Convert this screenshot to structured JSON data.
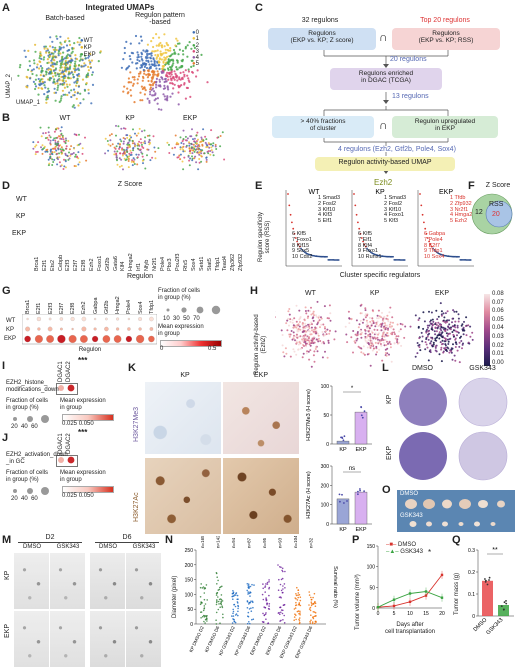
{
  "panels": {
    "A": {
      "label": "A",
      "title": "Integrated UMAPs",
      "left_title": "Batch-based",
      "right_title": "Regulon pattern\n-based",
      "legend": [
        "WT",
        "KP",
        "EKP"
      ],
      "legend_colors": [
        "#3f6fb6",
        "#e3b52a",
        "#48a84c"
      ],
      "cluster_ids": [
        "0",
        "1",
        "2",
        "3",
        "4",
        "5"
      ],
      "cluster_colors": [
        "#3f6fb6",
        "#f0c541",
        "#48a84c",
        "#d94b7a",
        "#8e5aa9",
        "#e57b2e"
      ],
      "axis_y": "UMAP_2",
      "axis_x": "UMAP_1"
    },
    "B": {
      "label": "B",
      "groups": [
        "WT",
        "KP",
        "EKP"
      ]
    },
    "C": {
      "label": "C",
      "left_count": "32 regulons",
      "right_count": "Top 20 regulons",
      "left_box": "Regulons\n(EKP vs. KP; Z score)",
      "right_box": "Regulons\n(EKP vs. KP; RSS)",
      "cap": "∩",
      "count_20": "20 regulons",
      "enriched_box": "Regulons enriched\nin DGAC (TCGA)",
      "count_13": "13 regulons",
      "fraction_box": "> 40% fractions\nof cluster",
      "upregulated_box": "Regulon upregulated\nin EKP",
      "count_4": "4 regulons (Ezh2, Gtf2b, Pole4, Sox4)",
      "umap_box": "Regulon activity-based UMAP",
      "result": "Ezh2"
    },
    "D": {
      "label": "D",
      "title": "Z Score",
      "rows": [
        "WT",
        "KP",
        "EKP"
      ],
      "genes": [
        "Brca1",
        "E2f1",
        "Ets2",
        "Cebpb",
        "E2f3",
        "E2f7",
        "E2f8",
        "Ezh2",
        "Foxo1",
        "Gtf2b",
        "Gata6",
        "Klf4",
        "Hmga2",
        "Irf1",
        "Nfyb",
        "Nr2f1",
        "Pole4",
        "Pbx3",
        "Pou2f3",
        "Rfx5",
        "Sox4",
        "Setd1",
        "Stat5",
        "Tfdp1",
        "Tead4",
        "Zfp362",
        "Zfp932"
      ],
      "axis_label": "Regulon"
    },
    "E": {
      "label": "E",
      "ylabel": "Regulon specificity\nscore (RSS)",
      "xlabel": "Cluster specific regulators",
      "groups": [
        {
          "name": "WT",
          "list_left": [
            "6 Klf5",
            "7 Foxo1",
            "8 Klf15",
            "9 Sox5",
            "10 Cdx2"
          ],
          "list_right": [
            "1 Smad3",
            "2 Fosl2",
            "3 Klf10",
            "4 Klf3",
            "5 Elf1"
          ]
        },
        {
          "name": "KP",
          "list_left": [
            "6 Klf5",
            "7 Elf1",
            "8 Klf4",
            "9 Foxo1",
            "10 Runx1"
          ],
          "list_right": [
            "1 Smad3",
            "2 Fosl2",
            "3 Klf10",
            "4 Foxo1",
            "5 Klf3"
          ]
        },
        {
          "name": "EKP",
          "list_left": [
            "6 Gabpa",
            "7 Pole4",
            "8 E2f7",
            "9 Tfdp1",
            "10 Sox4"
          ],
          "list_right": [
            "1 Tfdb",
            "2 Zfp932",
            "3 Nr2f1",
            "4 Hmga2",
            "5 Ezh2"
          ]
        }
      ]
    },
    "F": {
      "label": "F",
      "title": "Z Score",
      "left_num": "12",
      "inner": "RSS",
      "inner_num": "20"
    },
    "G": {
      "label": "G",
      "rows": [
        "WT",
        "KP",
        "EKP"
      ],
      "genes": [
        "Brca1",
        "E2f1",
        "E2f3",
        "E2f7",
        "E2f8",
        "Ezh2",
        "Gabpa",
        "Gtf2b",
        "Hmga2",
        "Pole4",
        "Sox4",
        "Tfdp1"
      ],
      "axis_label": "Regulon",
      "size_title": "Fraction of cells\nin group (%)",
      "size_ticks": [
        "10",
        "30",
        "50",
        "70"
      ],
      "color_title": "Mean expression\nin group",
      "color_ticks": [
        "0",
        "0.5"
      ]
    },
    "H": {
      "label": "H",
      "ylabel": "Regulon activity-based\n(Ezh2)",
      "groups": [
        "WT",
        "KP",
        "EKP"
      ],
      "colorbar_ticks": [
        "0.08",
        "0.07",
        "0.06",
        "0.05",
        "0.04",
        "0.03",
        "0.02",
        "0.01",
        "0.00"
      ]
    },
    "I": {
      "label": "I",
      "significance": "***",
      "cols": [
        "DGAC1",
        "DGAC2"
      ],
      "term": "EZH2_histone_\nmodifications_down",
      "size_title": "Fraction of cells\nin group (%)",
      "size_ticks": [
        "20",
        "40",
        "60"
      ],
      "color_title": "Mean expression\nin group",
      "color_ticks": [
        "0.025",
        "0.050"
      ]
    },
    "J": {
      "label": "J",
      "significance": "***",
      "cols": [
        "DGAC1",
        "DGAC2"
      ],
      "term": "EZH2_activation_down\n_in GC",
      "size_title": "Fraction of cells\nin group (%)",
      "size_ticks": [
        "20",
        "40",
        "60"
      ],
      "color_title": "Mean expression\nin group",
      "color_ticks": [
        "0.025",
        "0.050"
      ]
    },
    "K": {
      "label": "K",
      "cols": [
        "KP",
        "EKP"
      ],
      "rows": [
        "H3K27Me3",
        "H3K27Ac"
      ],
      "bar1": {
        "ylabel": "H3K27Me3 (H score)",
        "sig": "*",
        "categories": [
          "KP",
          "EKP"
        ],
        "ticks": [
          "0",
          "50",
          "100"
        ]
      },
      "bar2": {
        "ylabel": "H3K27Ac (H score)",
        "sig": "ns",
        "categories": [
          "KP",
          "EKP"
        ],
        "ticks": [
          "0",
          "100",
          "200",
          "300"
        ]
      }
    },
    "L": {
      "label": "L",
      "cols": [
        "DMSO",
        "GSK343"
      ],
      "rows": [
        "KP",
        "EKP"
      ]
    },
    "M": {
      "label": "M",
      "days": [
        "D2",
        "D6"
      ],
      "treatments": [
        "DMSO",
        "GSK343",
        "DMSO",
        "GSK343"
      ],
      "rows": [
        "KP",
        "EKP"
      ]
    },
    "N": {
      "label": "N",
      "ylabel": "Diameter (pixel)",
      "y2label": "Survival ratio (%)",
      "counts": [
        "n=165",
        "n=142",
        "n=94",
        "n=87",
        "n=95",
        "n=93",
        "n=104",
        "n=32"
      ],
      "categories": [
        "KP DMSO D2",
        "KP DMSO D6",
        "KP GSK343 D2",
        "KP GSK343 D6",
        "EKP DMSO D2",
        "EKP DMSO D6",
        "EKP GSK343 D2",
        "EKP GSK343 D6"
      ],
      "y_ticks": [
        "0",
        "50",
        "100",
        "150",
        "200",
        "250"
      ]
    },
    "O": {
      "label": "O",
      "rows": [
        "DMSO",
        "GSK343"
      ]
    },
    "P": {
      "label": "P",
      "ylabel": "Tumor volume (mm³)",
      "xlabel": "Days after\ncell transplantation",
      "legend": [
        "DMSO",
        "GSK343"
      ],
      "sig": "*",
      "x_ticks": [
        "0",
        "5",
        "10",
        "15",
        "20"
      ],
      "y_ticks": [
        "0",
        "50",
        "100",
        "150"
      ]
    },
    "Q": {
      "label": "Q",
      "ylabel": "Tumor mass (g)",
      "sig": "**",
      "categories": [
        "DMSO",
        "GSK343"
      ],
      "y_ticks": [
        "0",
        "0.1",
        "0.2",
        "0.3"
      ]
    }
  },
  "chart_data": [
    {
      "type": "line",
      "panel": "E-WT",
      "x": [
        1,
        2,
        3,
        4,
        5,
        6,
        7,
        8,
        9,
        10,
        15,
        20,
        25,
        30,
        35,
        40,
        45,
        50
      ],
      "y": [
        0.56,
        0.545,
        0.535,
        0.525,
        0.52,
        0.515,
        0.51,
        0.505,
        0.5,
        0.497,
        0.49,
        0.485,
        0.48,
        0.475,
        0.47,
        0.465,
        0.46,
        0.455
      ]
    },
    {
      "type": "bar",
      "panel": "K-H3K27Me3",
      "categories": [
        "KP",
        "EKP"
      ],
      "values": [
        5,
        55
      ],
      "ylim": [
        0,
        100
      ]
    },
    {
      "type": "bar",
      "panel": "K-H3K27Ac",
      "categories": [
        "KP",
        "EKP"
      ],
      "values": [
        130,
        165
      ],
      "ylim": [
        0,
        300
      ]
    },
    {
      "type": "line",
      "panel": "P",
      "x": [
        0,
        5,
        10,
        15,
        20
      ],
      "series": [
        {
          "name": "DMSO",
          "values": [
            2,
            5,
            15,
            30,
            80
          ]
        },
        {
          "name": "GSK343",
          "values": [
            2,
            20,
            35,
            40,
            25
          ]
        }
      ],
      "xlim": [
        0,
        20
      ],
      "ylim": [
        0,
        150
      ]
    },
    {
      "type": "bar",
      "panel": "Q",
      "categories": [
        "DMSO",
        "GSK343"
      ],
      "values": [
        0.16,
        0.05
      ],
      "ylim": [
        0,
        0.3
      ]
    }
  ]
}
